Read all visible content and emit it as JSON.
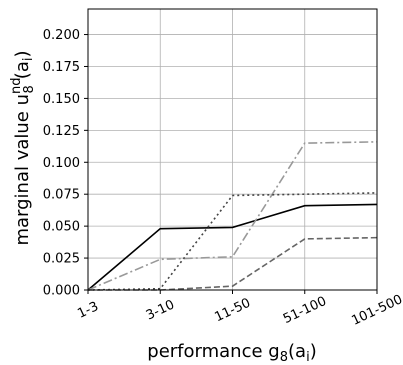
{
  "chart_data": {
    "type": "line",
    "title": "",
    "xlabel": "performance g",
    "xlabel_sub": "8",
    "xlabel_tail": "(a",
    "xlabel_tail_sub": "i",
    "xlabel_end": ")",
    "ylabel": "marginal value u",
    "ylabel_sub": "8",
    "ylabel_sup": "nd",
    "ylabel_tail": "(a",
    "ylabel_tail_sub": "i",
    "ylabel_end": ")",
    "categories": [
      "1-3",
      "3-10",
      "11-50",
      "51-100",
      "101-500"
    ],
    "ylim": [
      0,
      0.22
    ],
    "yticks": [
      0.0,
      0.025,
      0.05,
      0.075,
      0.1,
      0.125,
      0.15,
      0.175,
      0.2
    ],
    "ytick_labels": [
      "0.000",
      "0.025",
      "0.050",
      "0.075",
      "0.100",
      "0.125",
      "0.150",
      "0.175",
      "0.200"
    ],
    "grid": true,
    "legend": "none",
    "series": [
      {
        "values": [
          0,
          0.048,
          0.049,
          0.066,
          0.067
        ],
        "color": "#000000",
        "style": "solid"
      },
      {
        "values": [
          0,
          0.024,
          0.026,
          0.115,
          0.116
        ],
        "color": "#999999",
        "style": "dashdot"
      },
      {
        "values": [
          0,
          0.001,
          0.074,
          0.075,
          0.076
        ],
        "color": "#444444",
        "style": "dotted"
      },
      {
        "values": [
          0,
          0.0,
          0.003,
          0.04,
          0.041
        ],
        "color": "#666666",
        "style": "dashed"
      }
    ]
  }
}
